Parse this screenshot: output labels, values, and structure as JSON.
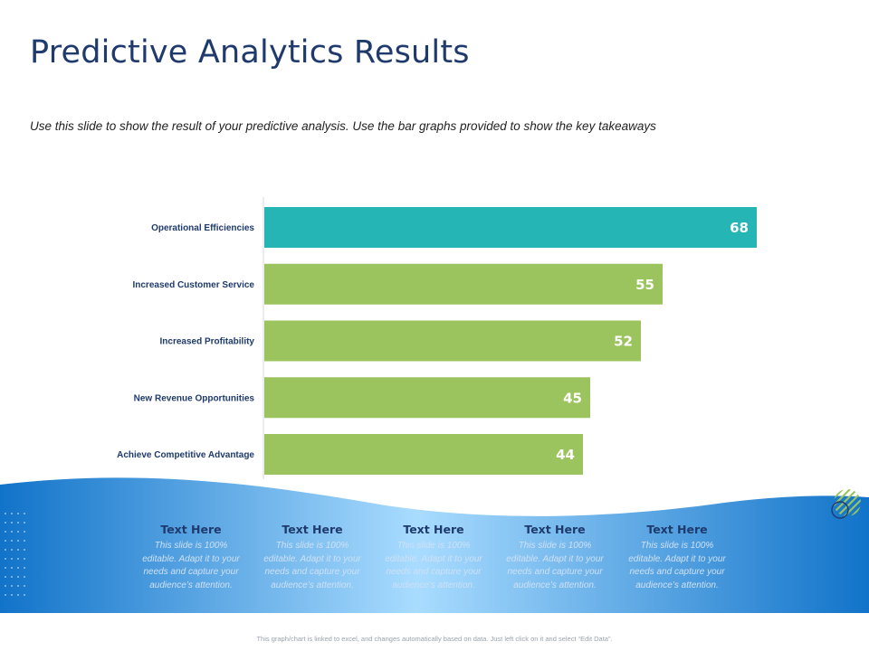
{
  "slide": {
    "title": "Predictive Analytics Results",
    "subtitle": "Use this slide to show the result of your predictive analysis. Use the bar graphs provided to show the key takeaways",
    "footer_note": "This graph/chart is linked to excel, and changes automatically based on data. Just left click on it and select “Edit Data”."
  },
  "chart_data": {
    "type": "bar",
    "orientation": "horizontal",
    "categories": [
      "Operational Efficiencies",
      "Increased Customer Service",
      "Increased Profitability",
      "New Revenue Opportunities",
      "Achieve Competitive Advantage"
    ],
    "values": [
      68,
      55,
      52,
      45,
      44
    ],
    "data_labels": [
      "68",
      "55",
      "52",
      "45",
      "44"
    ],
    "xlim": [
      0,
      80
    ],
    "grid": false,
    "legend": "none",
    "highlight_index": 0
  },
  "colors": {
    "highlight_bar": "#26b5b5",
    "bar": "#9bc45f",
    "title": "#1f3a6d",
    "wave_dark": "#1173c9",
    "wave_light": "#a9dcff"
  },
  "cards": [
    {
      "title": "Text Here",
      "body": "This slide is 100% editable. Adapt it to your needs and capture your audience’s attention."
    },
    {
      "title": "Text Here",
      "body": "This slide is 100% editable. Adapt it to your needs and capture your audience’s attention."
    },
    {
      "title": "Text Here",
      "body": "This slide is 100% editable. Adapt it to your needs and capture your audience’s attention."
    },
    {
      "title": "Text Here",
      "body": "This slide is 100% editable. Adapt it to your needs and capture your audience’s attention."
    },
    {
      "title": "Text Here",
      "body": "This slide is 100% editable. Adapt it to your needs and capture your audience’s attention."
    }
  ],
  "icons": {
    "dot_grid": "dot-grid-decoration-icon",
    "stripes": "striped-circle-icon"
  }
}
